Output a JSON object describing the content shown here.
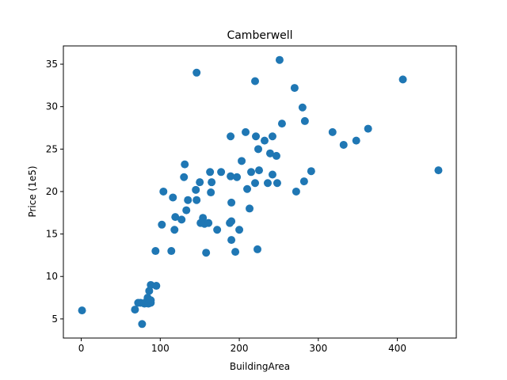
{
  "chart_data": {
    "type": "scatter",
    "title": "Camberwell",
    "xlabel": "BuildingArea",
    "ylabel": "Price (1e5)",
    "xlim": [
      -22.6,
      474.6
    ],
    "ylim": [
      2.75,
      37.15
    ],
    "xticks": [
      0,
      100,
      200,
      300,
      400
    ],
    "yticks": [
      5,
      10,
      15,
      20,
      25,
      30,
      35
    ],
    "grid": false,
    "marker_color": "#1f77b4",
    "series": [
      {
        "points": [
          [
            1,
            6.0
          ],
          [
            68,
            6.1
          ],
          [
            72,
            6.9
          ],
          [
            75,
            6.9
          ],
          [
            77,
            4.4
          ],
          [
            80,
            6.8
          ],
          [
            82,
            7.0
          ],
          [
            84,
            7.5
          ],
          [
            85,
            6.8
          ],
          [
            86,
            8.3
          ],
          [
            87,
            7.2
          ],
          [
            88,
            6.9
          ],
          [
            88,
            7.2
          ],
          [
            88,
            9.0
          ],
          [
            95,
            8.9
          ],
          [
            94,
            13.0
          ],
          [
            102,
            16.1
          ],
          [
            104,
            20.0
          ],
          [
            114,
            13.0
          ],
          [
            116,
            19.3
          ],
          [
            118,
            15.5
          ],
          [
            119,
            17.0
          ],
          [
            127,
            16.7
          ],
          [
            130,
            21.7
          ],
          [
            131,
            23.2
          ],
          [
            133,
            17.8
          ],
          [
            135,
            19.0
          ],
          [
            145,
            20.2
          ],
          [
            146,
            19.0
          ],
          [
            146,
            34.0
          ],
          [
            150,
            21.1
          ],
          [
            151,
            16.3
          ],
          [
            154,
            16.9
          ],
          [
            156,
            16.2
          ],
          [
            158,
            12.8
          ],
          [
            161,
            16.3
          ],
          [
            163,
            22.3
          ],
          [
            164,
            19.9
          ],
          [
            165,
            21.1
          ],
          [
            172,
            15.5
          ],
          [
            177,
            22.3
          ],
          [
            188,
            16.3
          ],
          [
            189,
            26.5
          ],
          [
            189,
            21.8
          ],
          [
            190,
            14.3
          ],
          [
            190,
            18.7
          ],
          [
            190,
            16.5
          ],
          [
            195,
            12.9
          ],
          [
            197,
            21.7
          ],
          [
            200,
            15.5
          ],
          [
            203,
            23.6
          ],
          [
            208,
            27.0
          ],
          [
            210,
            20.3
          ],
          [
            213,
            18.0
          ],
          [
            215,
            22.3
          ],
          [
            220,
            33.0
          ],
          [
            220,
            21.0
          ],
          [
            221,
            26.5
          ],
          [
            223,
            13.2
          ],
          [
            224,
            25.0
          ],
          [
            225,
            22.5
          ],
          [
            232,
            26.0
          ],
          [
            236,
            21.0
          ],
          [
            239,
            24.5
          ],
          [
            242,
            26.5
          ],
          [
            242,
            22.0
          ],
          [
            247,
            24.2
          ],
          [
            248,
            21.0
          ],
          [
            251,
            35.5
          ],
          [
            254,
            28.0
          ],
          [
            270,
            32.2
          ],
          [
            272,
            20.0
          ],
          [
            280,
            29.9
          ],
          [
            282,
            21.2
          ],
          [
            283,
            28.3
          ],
          [
            291,
            22.4
          ],
          [
            318,
            27.0
          ],
          [
            332,
            25.5
          ],
          [
            348,
            26.0
          ],
          [
            363,
            27.4
          ],
          [
            407,
            33.2
          ],
          [
            452,
            22.5
          ]
        ]
      }
    ]
  }
}
